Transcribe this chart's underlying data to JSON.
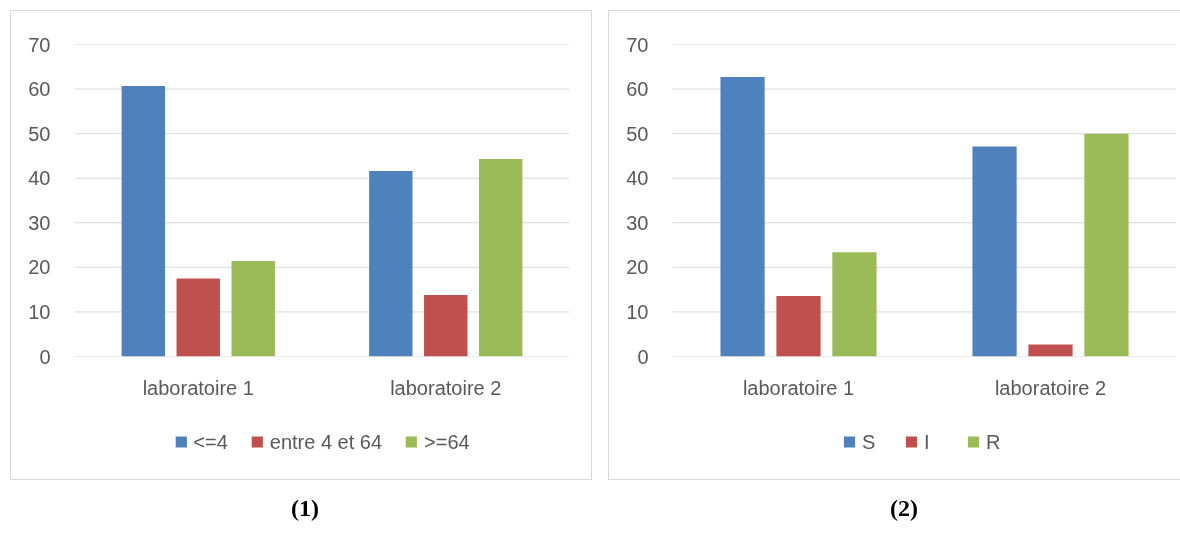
{
  "chart_data": [
    {
      "type": "bar",
      "categories": [
        "laboratoire 1",
        "laboratoire 2"
      ],
      "series": [
        {
          "name": "<=4",
          "color": "#4f81bd",
          "values": [
            60.7,
            41.6
          ]
        },
        {
          "name": "entre 4 et 64",
          "color": "#c0504d",
          "values": [
            17.5,
            13.8
          ]
        },
        {
          "name": ">=64",
          "color": "#9bbb59",
          "values": [
            21.4,
            44.3
          ]
        }
      ],
      "ylim": [
        0,
        70
      ],
      "yticks": [
        0,
        10,
        20,
        30,
        40,
        50,
        60,
        70
      ],
      "grid": "y",
      "legend": "bottom",
      "annotations": [
        "(1)"
      ]
    },
    {
      "type": "bar",
      "categories": [
        "laboratoire 1",
        "laboratoire 2"
      ],
      "series": [
        {
          "name": "S",
          "color": "#4f81bd",
          "values": [
            62.7,
            47.1
          ]
        },
        {
          "name": "I",
          "color": "#c0504d",
          "values": [
            13.6,
            2.7
          ]
        },
        {
          "name": "R",
          "color": "#9bbb59",
          "values": [
            23.4,
            50.0
          ]
        }
      ],
      "ylim": [
        0,
        70
      ],
      "yticks": [
        0,
        10,
        20,
        30,
        40,
        50,
        60,
        70
      ],
      "grid": "y",
      "legend": "bottom",
      "annotations": [
        "(2)"
      ]
    }
  ]
}
